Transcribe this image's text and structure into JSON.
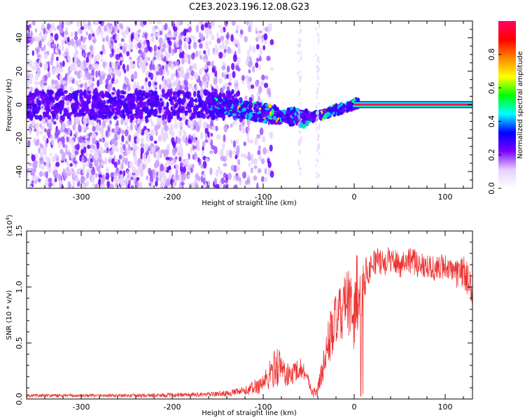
{
  "title": "C2E3.2023.196.12.08.G23",
  "chart_data": [
    {
      "type": "heatmap",
      "name": "spectrogram",
      "xlabel": "Height of straight line (km)",
      "ylabel": "Frequency (Hz)",
      "xlim": [
        -360,
        130
      ],
      "ylim": [
        -50,
        50
      ],
      "xticks": [
        -300,
        -200,
        -100,
        0,
        100
      ],
      "yticks": [
        -40,
        -20,
        0,
        20,
        40
      ],
      "colorbar": {
        "label": "Normalized spectral amplitude",
        "range": [
          0,
          1
        ],
        "ticks": [
          "0.0",
          "0.2",
          "0.4",
          "0.6",
          "0.8"
        ],
        "colors": [
          "#ffffff",
          "#e6d0ff",
          "#7a00ff",
          "#0000ff",
          "#00ffff",
          "#00ff00",
          "#ffff00",
          "#ff8800",
          "#ff0000",
          "#ff0066"
        ]
      },
      "features": {
        "noise_region_x": [
          -360,
          -100
        ],
        "scatter_region_x": [
          -160,
          -40
        ],
        "carrier_line_x": [
          0,
          130
        ],
        "carrier_frequency_hz": 0
      }
    },
    {
      "type": "line",
      "name": "snr",
      "xlabel": "Height of straight line (km)",
      "ylabel": "SNR (10 * v/v)",
      "scale_label": "(x10",
      "scale_exp": "4",
      "scale_close": ")",
      "xlim": [
        -360,
        130
      ],
      "ylim": [
        0,
        1.5
      ],
      "xticks": [
        -300,
        -200,
        -100,
        0,
        100
      ],
      "yticks": [
        "0.0",
        "0.5",
        "1.0",
        "1.5"
      ],
      "color": "#ee3333",
      "envelope": {
        "x": [
          -360,
          -300,
          -250,
          -200,
          -160,
          -140,
          -120,
          -105,
          -95,
          -90,
          -85,
          -80,
          -75,
          -70,
          -65,
          -60,
          -55,
          -50,
          -45,
          -40,
          -35,
          -30,
          -25,
          -20,
          -15,
          -10,
          -5,
          0,
          3,
          5,
          8,
          10,
          15,
          20,
          25,
          30,
          40,
          50,
          60,
          70,
          80,
          90,
          100,
          110,
          120,
          125,
          130
        ],
        "mean": [
          0.03,
          0.03,
          0.03,
          0.035,
          0.04,
          0.05,
          0.07,
          0.12,
          0.18,
          0.25,
          0.3,
          0.28,
          0.22,
          0.2,
          0.25,
          0.28,
          0.25,
          0.15,
          0.05,
          0.08,
          0.25,
          0.45,
          0.6,
          0.7,
          0.75,
          0.85,
          0.85,
          0.7,
          1.0,
          0.9,
          0.95,
          1.05,
          1.15,
          1.2,
          1.25,
          1.2,
          1.25,
          1.2,
          1.25,
          1.2,
          1.2,
          1.15,
          1.2,
          1.1,
          1.15,
          1.05,
          1.0
        ],
        "amp": [
          0.015,
          0.015,
          0.015,
          0.02,
          0.02,
          0.025,
          0.04,
          0.08,
          0.12,
          0.15,
          0.2,
          0.15,
          0.12,
          0.1,
          0.1,
          0.1,
          0.08,
          0.06,
          0.04,
          0.08,
          0.12,
          0.2,
          0.25,
          0.25,
          0.25,
          0.3,
          0.3,
          0.3,
          0.4,
          0.35,
          0.3,
          0.2,
          0.15,
          0.12,
          0.12,
          0.12,
          0.12,
          0.12,
          0.12,
          0.12,
          0.12,
          0.12,
          0.12,
          0.12,
          0.15,
          0.15,
          0.15
        ]
      }
    }
  ]
}
